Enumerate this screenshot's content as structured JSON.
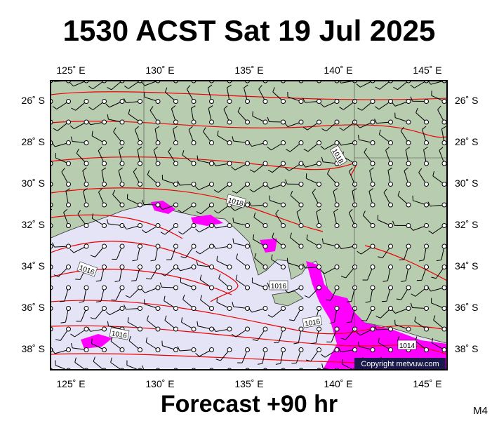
{
  "header": {
    "title": "1530 ACST Sat 19 Jul 2025"
  },
  "map": {
    "lon_labels": [
      "125˚ E",
      "130˚ E",
      "135˚ E",
      "140˚ E",
      "145˚ E"
    ],
    "lat_labels": [
      "26˚ S",
      "28˚ S",
      "30˚ S",
      "32˚ S",
      "34˚ S",
      "36˚ S",
      "38˚ S"
    ],
    "isobar_labels": [
      "1018",
      "1018",
      "1016",
      "1016",
      "1016",
      "1016",
      "1014"
    ],
    "copyright": "Copyright metvuw.com"
  },
  "footer": {
    "forecast": "Forecast +90 hr",
    "model": "M4"
  }
}
